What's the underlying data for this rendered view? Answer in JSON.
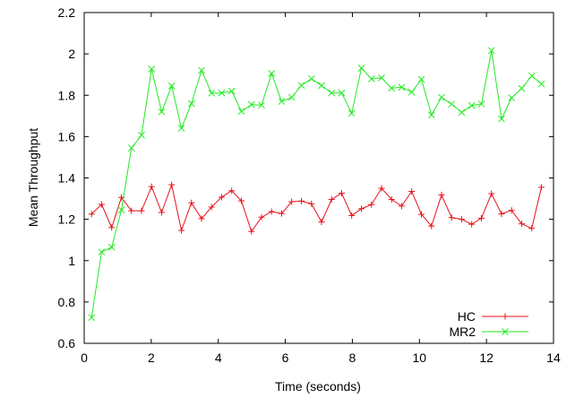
{
  "chart_data": {
    "type": "line",
    "xlabel": "Time (seconds)",
    "ylabel": "Mean Throughput",
    "xlim": [
      0,
      14
    ],
    "ylim": [
      0.6,
      2.2
    ],
    "xticks": [
      0,
      2,
      4,
      6,
      8,
      10,
      12,
      14
    ],
    "yticks": [
      0.6,
      0.8,
      1,
      1.2,
      1.4,
      1.6,
      1.8,
      2,
      2.2
    ],
    "ytick_labels": [
      "0.6",
      "0.8",
      "1",
      "1.2",
      "1.4",
      "1.6",
      "1.8",
      "2",
      "2.2"
    ],
    "grid": false,
    "legend_position": "bottom-right",
    "series": [
      {
        "name": "HC",
        "color": "#e8111a",
        "marker": "plus",
        "x": [
          0.22,
          0.52,
          0.82,
          1.11,
          1.41,
          1.71,
          2.01,
          2.31,
          2.61,
          2.9,
          3.2,
          3.5,
          3.8,
          4.1,
          4.4,
          4.69,
          4.99,
          5.29,
          5.59,
          5.89,
          6.19,
          6.48,
          6.78,
          7.08,
          7.38,
          7.68,
          7.98,
          8.27,
          8.57,
          8.87,
          9.17,
          9.47,
          9.77,
          10.06,
          10.36,
          10.66,
          10.96,
          11.26,
          11.56,
          11.85,
          12.15,
          12.45,
          12.75,
          13.05,
          13.35,
          13.64
        ],
        "y": [
          1.225,
          1.272,
          1.16,
          1.306,
          1.241,
          1.241,
          1.358,
          1.233,
          1.367,
          1.146,
          1.28,
          1.203,
          1.259,
          1.307,
          1.338,
          1.289,
          1.141,
          1.21,
          1.237,
          1.228,
          1.285,
          1.288,
          1.275,
          1.187,
          1.296,
          1.326,
          1.218,
          1.251,
          1.271,
          1.35,
          1.296,
          1.264,
          1.335,
          1.224,
          1.167,
          1.318,
          1.208,
          1.2,
          1.176,
          1.205,
          1.324,
          1.226,
          1.243,
          1.178,
          1.156,
          1.355
        ]
      },
      {
        "name": "MR2",
        "color": "#22e822",
        "marker": "x",
        "x": [
          0.22,
          0.52,
          0.82,
          1.11,
          1.41,
          1.71,
          2.01,
          2.31,
          2.61,
          2.9,
          3.2,
          3.5,
          3.8,
          4.1,
          4.4,
          4.69,
          4.99,
          5.29,
          5.59,
          5.89,
          6.19,
          6.48,
          6.78,
          7.08,
          7.38,
          7.68,
          7.98,
          8.27,
          8.57,
          8.87,
          9.17,
          9.47,
          9.77,
          10.06,
          10.36,
          10.66,
          10.96,
          11.26,
          11.56,
          11.85,
          12.15,
          12.45,
          12.75,
          13.05,
          13.35,
          13.64
        ],
        "y": [
          0.725,
          1.042,
          1.065,
          1.245,
          1.545,
          1.607,
          1.927,
          1.72,
          1.845,
          1.641,
          1.76,
          1.92,
          1.81,
          1.811,
          1.82,
          1.722,
          1.755,
          1.752,
          1.905,
          1.77,
          1.79,
          1.848,
          1.88,
          1.847,
          1.811,
          1.811,
          1.713,
          1.931,
          1.879,
          1.884,
          1.834,
          1.839,
          1.815,
          1.877,
          1.705,
          1.79,
          1.757,
          1.717,
          1.75,
          1.758,
          2.016,
          1.686,
          1.788,
          1.833,
          1.894,
          1.855
        ]
      }
    ]
  }
}
